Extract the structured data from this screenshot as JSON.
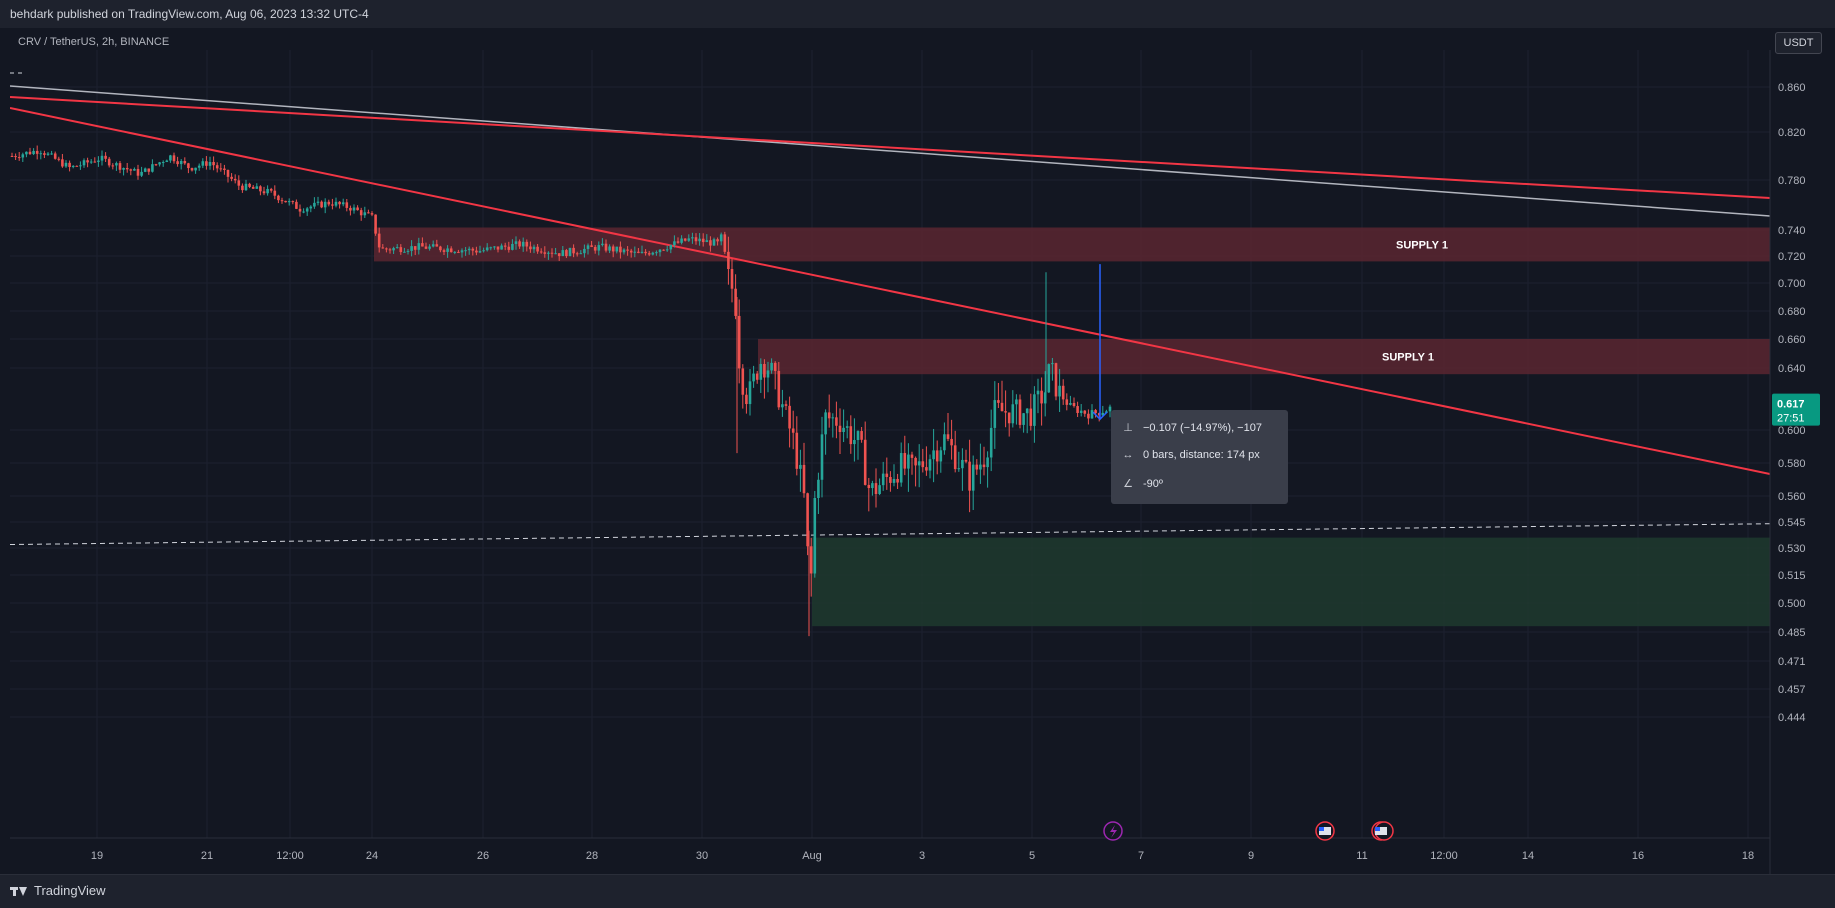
{
  "header": {
    "text": "behdark published on TradingView.com, Aug 06, 2023 13:32 UTC-4"
  },
  "footer": {
    "brand": "TradingView"
  },
  "chart_data": {
    "type": "candlestick",
    "symbol": "CRV / TetherUS, 2h, BINANCE",
    "quote_currency": "USDT",
    "x_ticks": [
      "19",
      "21",
      "12:00",
      "24",
      "26",
      "28",
      "30",
      "Aug",
      "3",
      "5",
      "7",
      "9",
      "11",
      "12:00",
      "14",
      "16",
      "18"
    ],
    "y_ticks": [
      "0.860",
      "0.820",
      "0.780",
      "0.740",
      "0.720",
      "0.700",
      "0.680",
      "0.660",
      "0.640",
      "0.600",
      "0.580",
      "0.560",
      "0.545",
      "0.530",
      "0.515",
      "0.500",
      "0.485",
      "0.471",
      "0.457",
      "0.444"
    ],
    "last_price": "0.617",
    "countdown": "27:51",
    "zones": [
      {
        "label": "SUPPLY 1",
        "type": "supply",
        "top": 0.742,
        "bottom": 0.716
      },
      {
        "label": "SUPPLY 1",
        "type": "supply",
        "top": 0.66,
        "bottom": 0.636
      },
      {
        "label": "",
        "type": "demand",
        "top": 0.536,
        "bottom": 0.488
      }
    ],
    "dashed_level": {
      "from": 0.532,
      "to": 0.544
    },
    "measure": {
      "delta": "−0.107 (−14.97%), −107",
      "bars": "0 bars, distance: 174 px",
      "angle": "-90º"
    },
    "colors": {
      "up": "#26a69a",
      "down": "#ef5350",
      "trendline": "#f23645",
      "grey_line": "#b2b5be",
      "supply_zone": "#5b2630",
      "demand_zone": "#1f3a2e",
      "measure": "#2962ff",
      "price_badge": "#089981"
    }
  }
}
